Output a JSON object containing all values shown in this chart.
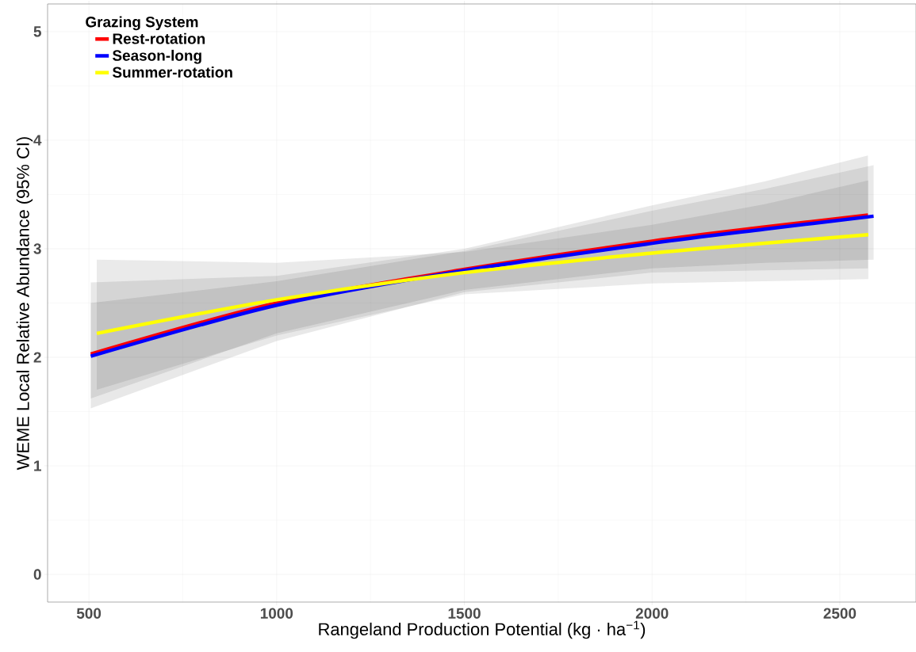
{
  "chart_data": {
    "type": "line",
    "xlabel": "Rangeland Production Potential (kg · ha$^{−1}$)",
    "ylabel": "WEME Local Relative Abundance (95% CI)",
    "legend_title": "Grazing System",
    "xlim": [
      390,
      2703
    ],
    "ylim": [
      -0.255,
      5.255
    ],
    "xticks": [
      500,
      1000,
      1500,
      2000,
      2500
    ],
    "yticks": [
      0,
      1,
      2,
      3,
      4,
      5
    ],
    "grid": true,
    "legend": "top left",
    "line_style": "solid",
    "series": [
      {
        "name": "Rest-rotation",
        "color": "#ff0000",
        "x": [
          505,
          1000,
          1500,
          2000,
          2300,
          2575
        ],
        "values": [
          2.03,
          2.5,
          2.81,
          3.07,
          3.2,
          3.31
        ],
        "lower": [
          1.53,
          2.15,
          2.6,
          2.78,
          2.8,
          2.82
        ],
        "upper": [
          2.69,
          2.75,
          3.0,
          3.4,
          3.62,
          3.86
        ]
      },
      {
        "name": "Season-long",
        "color": "#0000ff",
        "x": [
          505,
          1000,
          1500,
          2000,
          2300,
          2590
        ],
        "values": [
          2.01,
          2.48,
          2.8,
          3.05,
          3.18,
          3.3
        ],
        "lower": [
          1.62,
          2.22,
          2.62,
          2.82,
          2.87,
          2.9
        ],
        "upper": [
          2.5,
          2.7,
          2.98,
          3.35,
          3.55,
          3.77
        ]
      },
      {
        "name": "Summer-rotation",
        "color": "#ffff00",
        "x": [
          521,
          1000,
          1500,
          2000,
          2300,
          2576
        ],
        "values": [
          2.22,
          2.53,
          2.78,
          2.96,
          3.05,
          3.13
        ],
        "lower": [
          1.7,
          2.2,
          2.58,
          2.68,
          2.7,
          2.72
        ],
        "upper": [
          2.9,
          2.87,
          2.97,
          3.22,
          3.41,
          3.63
        ]
      }
    ]
  }
}
